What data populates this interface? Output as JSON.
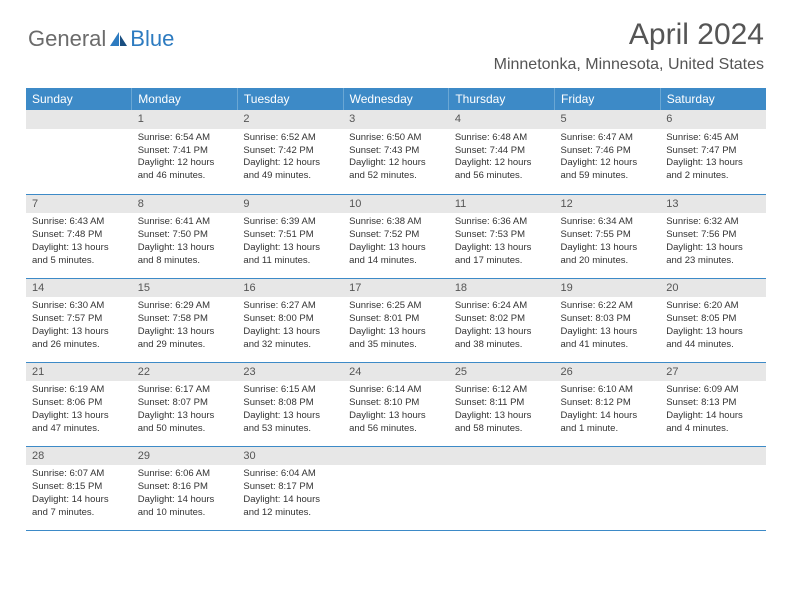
{
  "logo": {
    "text1": "General",
    "text2": "Blue"
  },
  "title": "April 2024",
  "location": "Minnetonka, Minnesota, United States",
  "colors": {
    "header_bg": "#3d8ac7",
    "header_fg": "#ffffff",
    "daynum_bg": "#e7e7e7",
    "rule": "#3d8ac7",
    "text": "#333333",
    "logo_gray": "#6b6b6b",
    "logo_blue": "#2d7bc0"
  },
  "columns": [
    "Sunday",
    "Monday",
    "Tuesday",
    "Wednesday",
    "Thursday",
    "Friday",
    "Saturday"
  ],
  "weeks": [
    [
      {
        "day": "",
        "sunrise": "",
        "sunset": "",
        "daylight": ""
      },
      {
        "day": "1",
        "sunrise": "6:54 AM",
        "sunset": "7:41 PM",
        "daylight": "12 hours and 46 minutes."
      },
      {
        "day": "2",
        "sunrise": "6:52 AM",
        "sunset": "7:42 PM",
        "daylight": "12 hours and 49 minutes."
      },
      {
        "day": "3",
        "sunrise": "6:50 AM",
        "sunset": "7:43 PM",
        "daylight": "12 hours and 52 minutes."
      },
      {
        "day": "4",
        "sunrise": "6:48 AM",
        "sunset": "7:44 PM",
        "daylight": "12 hours and 56 minutes."
      },
      {
        "day": "5",
        "sunrise": "6:47 AM",
        "sunset": "7:46 PM",
        "daylight": "12 hours and 59 minutes."
      },
      {
        "day": "6",
        "sunrise": "6:45 AM",
        "sunset": "7:47 PM",
        "daylight": "13 hours and 2 minutes."
      }
    ],
    [
      {
        "day": "7",
        "sunrise": "6:43 AM",
        "sunset": "7:48 PM",
        "daylight": "13 hours and 5 minutes."
      },
      {
        "day": "8",
        "sunrise": "6:41 AM",
        "sunset": "7:50 PM",
        "daylight": "13 hours and 8 minutes."
      },
      {
        "day": "9",
        "sunrise": "6:39 AM",
        "sunset": "7:51 PM",
        "daylight": "13 hours and 11 minutes."
      },
      {
        "day": "10",
        "sunrise": "6:38 AM",
        "sunset": "7:52 PM",
        "daylight": "13 hours and 14 minutes."
      },
      {
        "day": "11",
        "sunrise": "6:36 AM",
        "sunset": "7:53 PM",
        "daylight": "13 hours and 17 minutes."
      },
      {
        "day": "12",
        "sunrise": "6:34 AM",
        "sunset": "7:55 PM",
        "daylight": "13 hours and 20 minutes."
      },
      {
        "day": "13",
        "sunrise": "6:32 AM",
        "sunset": "7:56 PM",
        "daylight": "13 hours and 23 minutes."
      }
    ],
    [
      {
        "day": "14",
        "sunrise": "6:30 AM",
        "sunset": "7:57 PM",
        "daylight": "13 hours and 26 minutes."
      },
      {
        "day": "15",
        "sunrise": "6:29 AM",
        "sunset": "7:58 PM",
        "daylight": "13 hours and 29 minutes."
      },
      {
        "day": "16",
        "sunrise": "6:27 AM",
        "sunset": "8:00 PM",
        "daylight": "13 hours and 32 minutes."
      },
      {
        "day": "17",
        "sunrise": "6:25 AM",
        "sunset": "8:01 PM",
        "daylight": "13 hours and 35 minutes."
      },
      {
        "day": "18",
        "sunrise": "6:24 AM",
        "sunset": "8:02 PM",
        "daylight": "13 hours and 38 minutes."
      },
      {
        "day": "19",
        "sunrise": "6:22 AM",
        "sunset": "8:03 PM",
        "daylight": "13 hours and 41 minutes."
      },
      {
        "day": "20",
        "sunrise": "6:20 AM",
        "sunset": "8:05 PM",
        "daylight": "13 hours and 44 minutes."
      }
    ],
    [
      {
        "day": "21",
        "sunrise": "6:19 AM",
        "sunset": "8:06 PM",
        "daylight": "13 hours and 47 minutes."
      },
      {
        "day": "22",
        "sunrise": "6:17 AM",
        "sunset": "8:07 PM",
        "daylight": "13 hours and 50 minutes."
      },
      {
        "day": "23",
        "sunrise": "6:15 AM",
        "sunset": "8:08 PM",
        "daylight": "13 hours and 53 minutes."
      },
      {
        "day": "24",
        "sunrise": "6:14 AM",
        "sunset": "8:10 PM",
        "daylight": "13 hours and 56 minutes."
      },
      {
        "day": "25",
        "sunrise": "6:12 AM",
        "sunset": "8:11 PM",
        "daylight": "13 hours and 58 minutes."
      },
      {
        "day": "26",
        "sunrise": "6:10 AM",
        "sunset": "8:12 PM",
        "daylight": "14 hours and 1 minute."
      },
      {
        "day": "27",
        "sunrise": "6:09 AM",
        "sunset": "8:13 PM",
        "daylight": "14 hours and 4 minutes."
      }
    ],
    [
      {
        "day": "28",
        "sunrise": "6:07 AM",
        "sunset": "8:15 PM",
        "daylight": "14 hours and 7 minutes."
      },
      {
        "day": "29",
        "sunrise": "6:06 AM",
        "sunset": "8:16 PM",
        "daylight": "14 hours and 10 minutes."
      },
      {
        "day": "30",
        "sunrise": "6:04 AM",
        "sunset": "8:17 PM",
        "daylight": "14 hours and 12 minutes."
      },
      {
        "day": "",
        "sunrise": "",
        "sunset": "",
        "daylight": ""
      },
      {
        "day": "",
        "sunrise": "",
        "sunset": "",
        "daylight": ""
      },
      {
        "day": "",
        "sunrise": "",
        "sunset": "",
        "daylight": ""
      },
      {
        "day": "",
        "sunrise": "",
        "sunset": "",
        "daylight": ""
      }
    ]
  ],
  "labels": {
    "sunrise_prefix": "Sunrise: ",
    "sunset_prefix": "Sunset: ",
    "daylight_prefix": "Daylight: "
  }
}
